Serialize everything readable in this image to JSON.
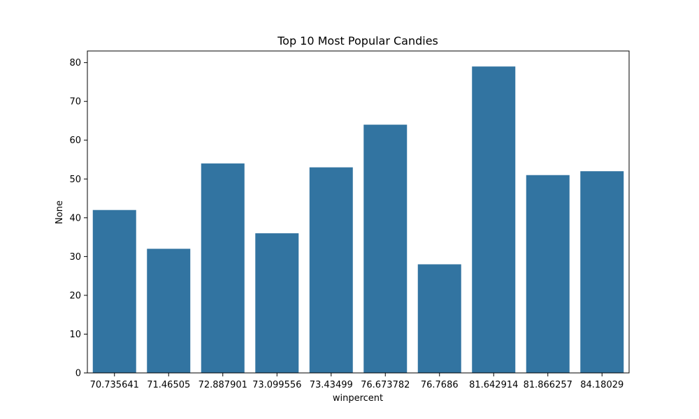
{
  "chart_data": {
    "type": "bar",
    "title": "Top 10 Most Popular Candies",
    "xlabel": "winpercent",
    "ylabel": "None",
    "categories": [
      "70.735641",
      "71.46505",
      "72.887901",
      "73.099556",
      "73.43499",
      "76.673782",
      "76.7686",
      "81.642914",
      "81.866257",
      "84.18029"
    ],
    "values": [
      42,
      32,
      54,
      36,
      53,
      64,
      28,
      79,
      51,
      52
    ],
    "ylim": [
      0,
      83
    ],
    "yticks": [
      0,
      10,
      20,
      30,
      40,
      50,
      60,
      70,
      80
    ],
    "grid": false,
    "bar_color": "#3274a1"
  }
}
